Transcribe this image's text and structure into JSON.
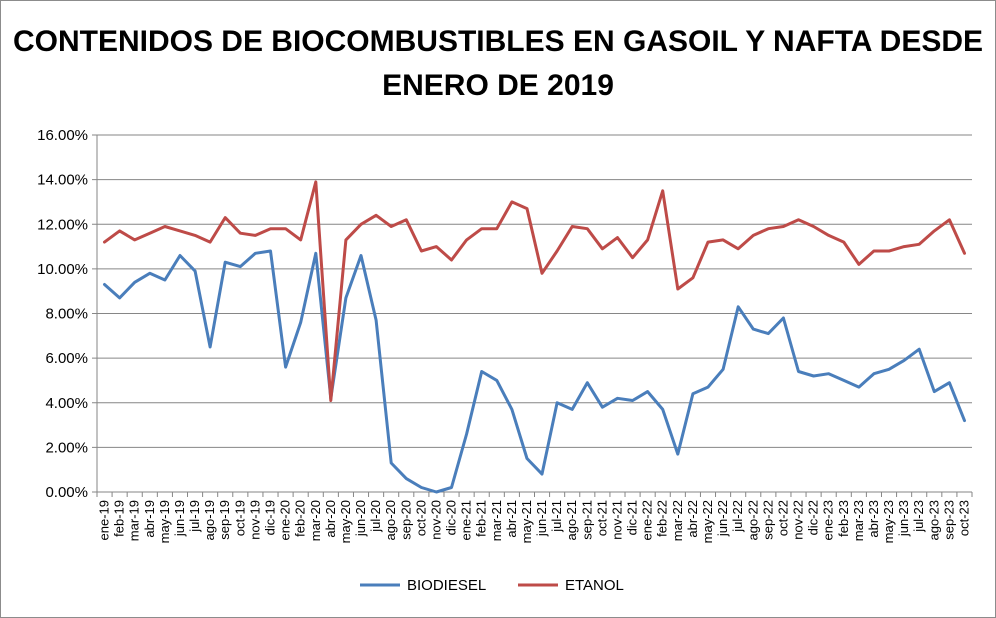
{
  "chart_data": {
    "type": "line",
    "title": "CONTENIDOS DE BIOCOMBUSTIBLES EN GASOIL Y NAFTA DESDE ENERO DE 2019",
    "xlabel": "",
    "ylabel": "",
    "ylim": [
      0,
      0.16
    ],
    "y_ticks": [
      "0.00%",
      "2.00%",
      "4.00%",
      "6.00%",
      "8.00%",
      "10.00%",
      "12.00%",
      "14.00%",
      "16.00%"
    ],
    "grid": "horizontal",
    "legend_position": "bottom",
    "categories": [
      "ene-19",
      "feb-19",
      "mar-19",
      "abr-19",
      "may-19",
      "jun-19",
      "jul-19",
      "ago-19",
      "sep-19",
      "oct-19",
      "nov-19",
      "dic-19",
      "ene-20",
      "feb-20",
      "mar-20",
      "abr-20",
      "may-20",
      "jun-20",
      "jul-20",
      "ago-20",
      "sep-20",
      "oct-20",
      "nov-20",
      "dic-20",
      "ene-21",
      "feb-21",
      "mar-21",
      "abr-21",
      "may-21",
      "jun-21",
      "jul-21",
      "ago-21",
      "sep-21",
      "oct-21",
      "nov-21",
      "dic-21",
      "ene-22",
      "feb-22",
      "mar-22",
      "abr-22",
      "may-22",
      "jun-22",
      "jul-22",
      "ago-22",
      "sep-22",
      "oct-22",
      "nov-22",
      "dic-22",
      "ene-23",
      "feb-23",
      "mar-23",
      "abr-23",
      "may-23",
      "jun-23",
      "jul-23",
      "ago-23",
      "sep-23",
      "oct-23"
    ],
    "series": [
      {
        "name": "BIODIESEL",
        "color": "#4a7ebb",
        "values": [
          0.093,
          0.087,
          0.094,
          0.098,
          0.095,
          0.106,
          0.099,
          0.065,
          0.103,
          0.101,
          0.107,
          0.108,
          0.056,
          0.076,
          0.107,
          0.042,
          0.087,
          0.106,
          0.077,
          0.013,
          0.006,
          0.002,
          0.0,
          0.002,
          0.026,
          0.054,
          0.05,
          0.037,
          0.015,
          0.008,
          0.04,
          0.037,
          0.049,
          0.038,
          0.042,
          0.041,
          0.045,
          0.037,
          0.017,
          0.044,
          0.047,
          0.055,
          0.083,
          0.073,
          0.071,
          0.078,
          0.054,
          0.052,
          0.053,
          0.05,
          0.047,
          0.053,
          0.055,
          0.059,
          0.064,
          0.045,
          0.049,
          0.032
        ]
      },
      {
        "name": "ETANOL",
        "color": "#be4b48",
        "values": [
          0.112,
          0.117,
          0.113,
          0.116,
          0.119,
          0.117,
          0.115,
          0.112,
          0.123,
          0.116,
          0.115,
          0.118,
          0.118,
          0.113,
          0.139,
          0.041,
          0.113,
          0.12,
          0.124,
          0.119,
          0.122,
          0.108,
          0.11,
          0.104,
          0.113,
          0.118,
          0.118,
          0.13,
          0.127,
          0.098,
          0.108,
          0.119,
          0.118,
          0.109,
          0.114,
          0.105,
          0.113,
          0.135,
          0.091,
          0.096,
          0.112,
          0.113,
          0.109,
          0.115,
          0.118,
          0.119,
          0.122,
          0.119,
          0.115,
          0.112,
          0.102,
          0.108,
          0.108,
          0.11,
          0.111,
          0.117,
          0.122,
          0.107
        ]
      }
    ]
  }
}
